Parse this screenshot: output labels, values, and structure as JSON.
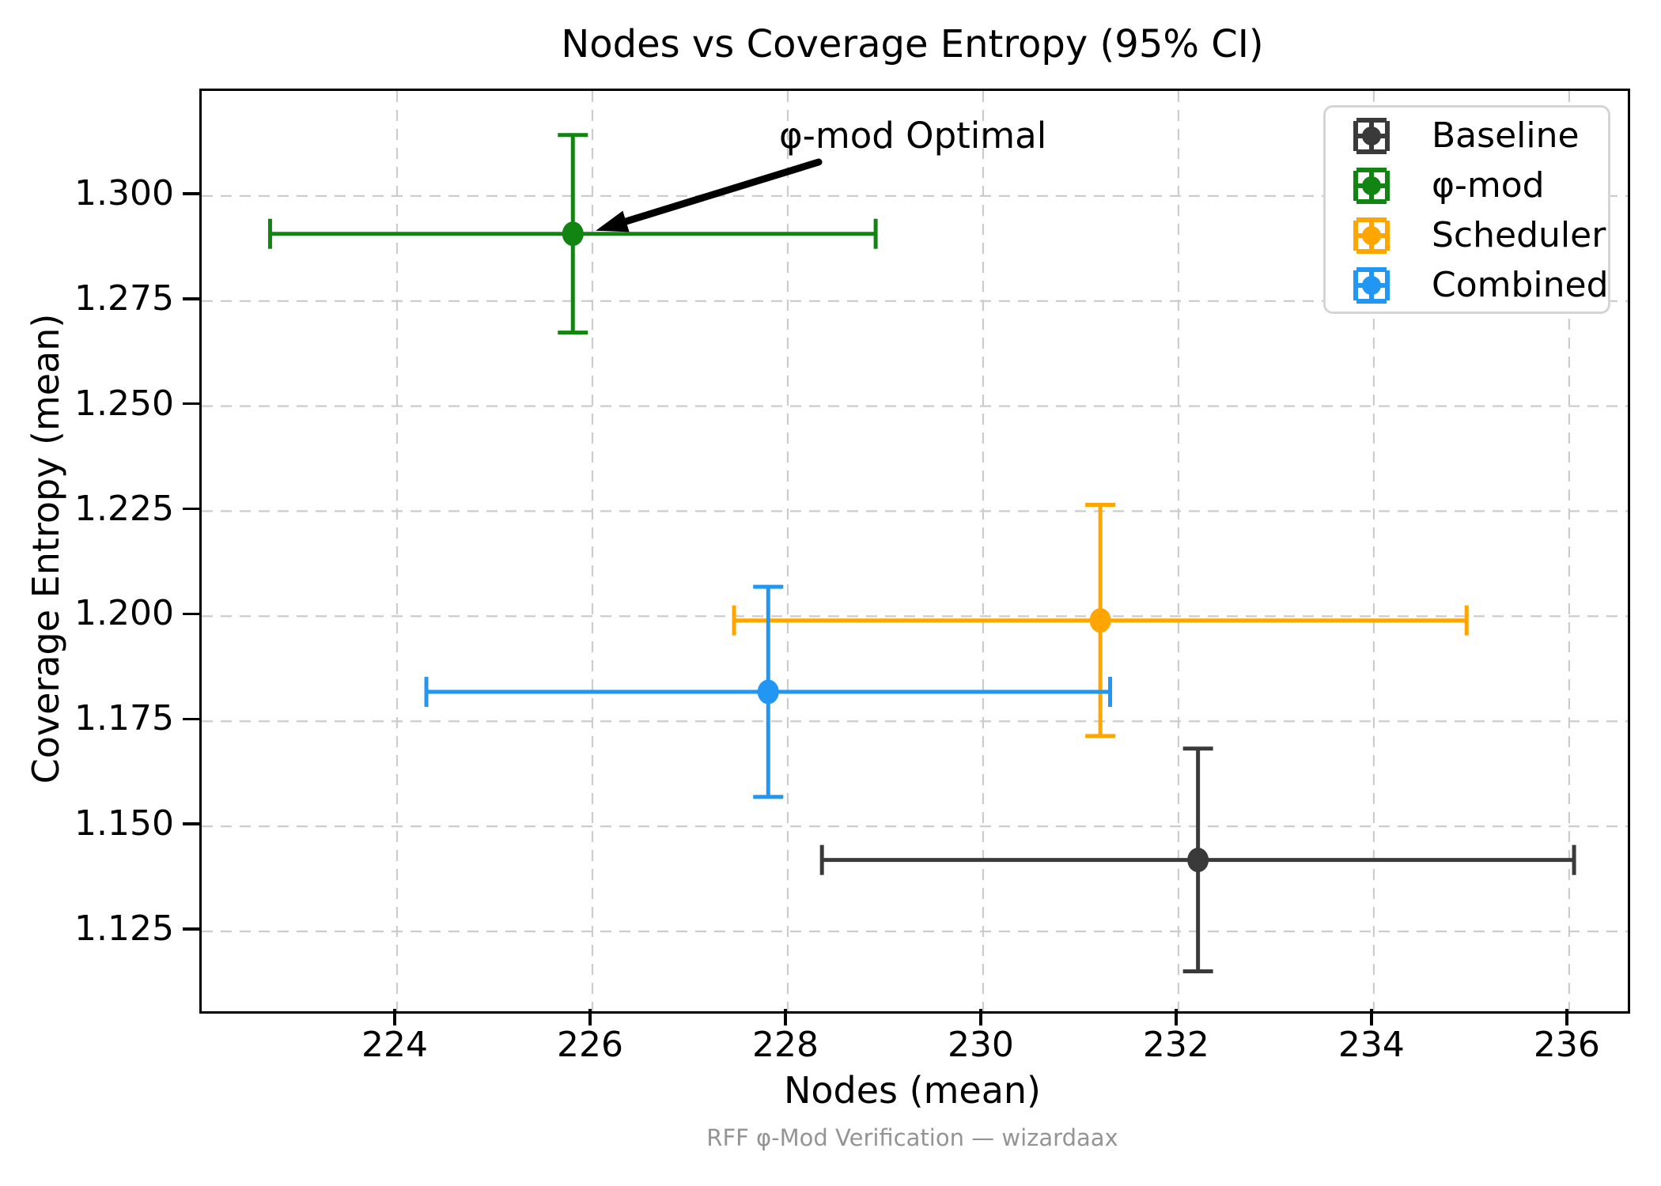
{
  "footer": "RFF φ-Mod Verification — wizardaax",
  "chart_data": {
    "type": "scatter",
    "title": "Nodes vs Coverage Entropy (95% CI)",
    "xlabel": "Nodes (mean)",
    "ylabel": "Coverage Entropy (mean)",
    "xlim": [
      222.0,
      236.6
    ],
    "ylim": [
      1.106,
      1.325
    ],
    "x_ticks": [
      224,
      226,
      228,
      230,
      232,
      234,
      236
    ],
    "y_ticks": [
      1.125,
      1.15,
      1.175,
      1.2,
      1.225,
      1.25,
      1.275,
      1.3
    ],
    "grid": true,
    "grid_style": "dashed",
    "grid_color": "#cccccc",
    "legend_position": "upper right",
    "error_bars": "95% CI, symmetric, x and y",
    "series": [
      {
        "name": "Baseline",
        "color": "#3a3a3a",
        "x": 232.2,
        "y": 1.142,
        "xerr": 3.85,
        "yerr": 0.0265
      },
      {
        "name": "φ-mod",
        "color": "#128412",
        "x": 225.8,
        "y": 1.291,
        "xerr": 3.1,
        "yerr": 0.0235
      },
      {
        "name": "Scheduler",
        "color": "#ffa500",
        "x": 231.2,
        "y": 1.199,
        "xerr": 3.75,
        "yerr": 0.0275
      },
      {
        "name": "Combined",
        "color": "#2196f3",
        "x": 227.8,
        "y": 1.182,
        "xerr": 3.5,
        "yerr": 0.025
      }
    ],
    "annotation": {
      "text": "φ-mod Optimal",
      "target_series": "φ-mod",
      "target": [
        225.8,
        1.291
      ]
    }
  }
}
